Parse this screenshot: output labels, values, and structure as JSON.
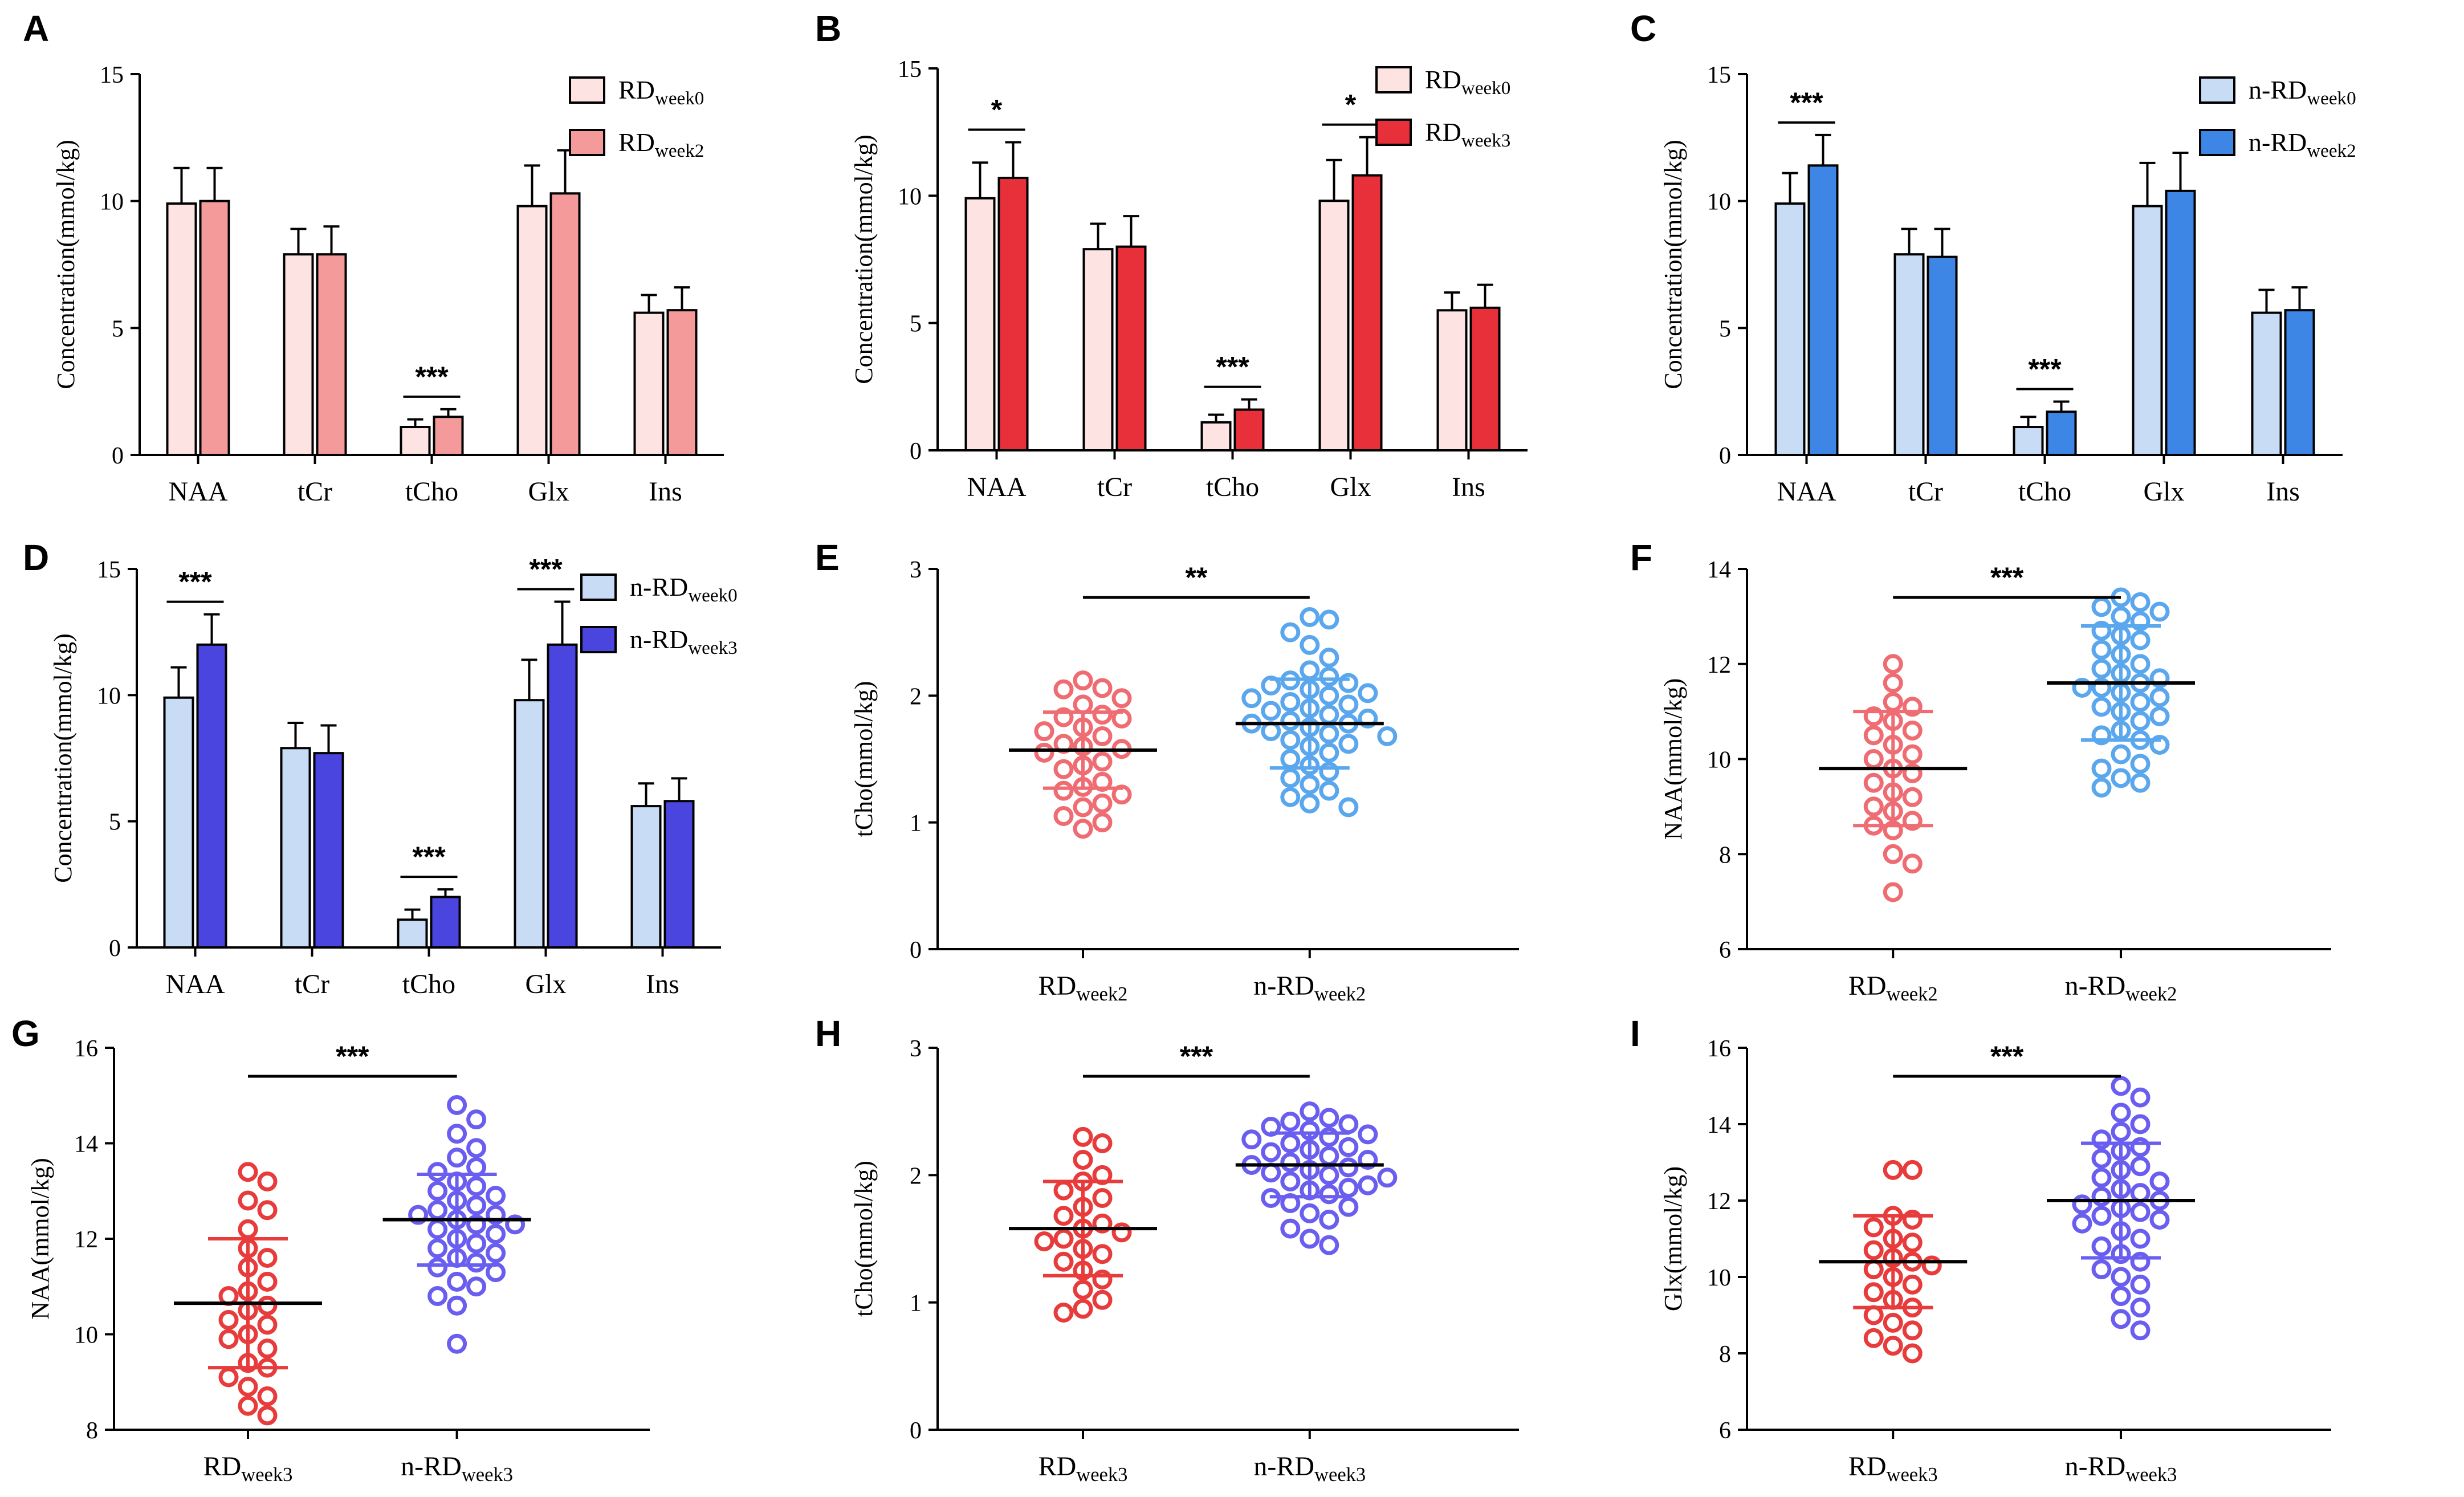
{
  "colors": {
    "RD_week0": "#fde3e1",
    "RD_week2": "#f49a9a",
    "RD_week3": "#e8303a",
    "nRD_week0": "#c8dcf5",
    "nRD_week2": "#3d86e6",
    "nRD_week3": "#4b45e0",
    "scatter_RD": "#ee6c72",
    "scatter_RD3": "#e83b3b",
    "scatter_nRD2": "#5aa7ee",
    "scatter_nRD3": "#6a5ef0"
  },
  "chart_data": [
    {
      "panel": "A",
      "type": "bar",
      "ylabel": "Concentration(mmol/kg)",
      "ylim": [
        0,
        15
      ],
      "yticks": [
        0,
        5,
        10,
        15
      ],
      "categories": [
        "NAA",
        "tCr",
        "tCho",
        "Glx",
        "Ins"
      ],
      "series": [
        {
          "name": "RD",
          "sub": "week0",
          "color_key": "RD_week0",
          "values": [
            9.9,
            7.9,
            1.1,
            9.8,
            5.6
          ],
          "errors": [
            1.4,
            1.0,
            0.3,
            1.6,
            0.7
          ]
        },
        {
          "name": "RD",
          "sub": "week2",
          "color_key": "RD_week2",
          "values": [
            10.0,
            7.9,
            1.5,
            10.3,
            5.7
          ],
          "errors": [
            1.3,
            1.1,
            0.3,
            1.7,
            0.9
          ]
        }
      ],
      "significance": [
        {
          "category": "tCho",
          "label": "***"
        }
      ]
    },
    {
      "panel": "B",
      "type": "bar",
      "ylabel": "Concentration(mmol/kg)",
      "ylim": [
        0,
        15
      ],
      "yticks": [
        0,
        5,
        10,
        15
      ],
      "categories": [
        "NAA",
        "tCr",
        "tCho",
        "Glx",
        "Ins"
      ],
      "series": [
        {
          "name": "RD",
          "sub": "week0",
          "color_key": "RD_week0",
          "values": [
            9.9,
            7.9,
            1.1,
            9.8,
            5.5
          ],
          "errors": [
            1.4,
            1.0,
            0.3,
            1.6,
            0.7
          ]
        },
        {
          "name": "RD",
          "sub": "week3",
          "color_key": "RD_week3",
          "values": [
            10.7,
            8.0,
            1.6,
            10.8,
            5.6
          ],
          "errors": [
            1.4,
            1.2,
            0.4,
            1.5,
            0.9
          ]
        }
      ],
      "significance": [
        {
          "category": "NAA",
          "label": "*"
        },
        {
          "category": "tCho",
          "label": "***"
        },
        {
          "category": "Glx",
          "label": "*"
        }
      ]
    },
    {
      "panel": "C",
      "type": "bar",
      "ylabel": "Concentration(mmol/kg)",
      "ylim": [
        0,
        15
      ],
      "yticks": [
        0,
        5,
        10,
        15
      ],
      "categories": [
        "NAA",
        "tCr",
        "tCho",
        "Glx",
        "Ins"
      ],
      "series": [
        {
          "name": "n-RD",
          "sub": "week0",
          "color_key": "nRD_week0",
          "values": [
            9.9,
            7.9,
            1.1,
            9.8,
            5.6
          ],
          "errors": [
            1.2,
            1.0,
            0.4,
            1.7,
            0.9
          ]
        },
        {
          "name": "n-RD",
          "sub": "week2",
          "color_key": "nRD_week2",
          "values": [
            11.4,
            7.8,
            1.7,
            10.4,
            5.7
          ],
          "errors": [
            1.2,
            1.1,
            0.4,
            1.5,
            0.9
          ]
        }
      ],
      "significance": [
        {
          "category": "NAA",
          "label": "***"
        },
        {
          "category": "tCho",
          "label": "***"
        }
      ]
    },
    {
      "panel": "D",
      "type": "bar",
      "ylabel": "Concentration(mmol/kg)",
      "ylim": [
        0,
        15
      ],
      "yticks": [
        0,
        5,
        10,
        15
      ],
      "categories": [
        "NAA",
        "tCr",
        "tCho",
        "Glx",
        "Ins"
      ],
      "series": [
        {
          "name": "n-RD",
          "sub": "week0",
          "color_key": "nRD_week0",
          "values": [
            9.9,
            7.9,
            1.1,
            9.8,
            5.6
          ],
          "errors": [
            1.2,
            1.0,
            0.4,
            1.6,
            0.9
          ]
        },
        {
          "name": "n-RD",
          "sub": "week3",
          "color_key": "nRD_week3",
          "values": [
            12.0,
            7.7,
            2.0,
            12.0,
            5.8
          ],
          "errors": [
            1.2,
            1.1,
            0.3,
            1.7,
            0.9
          ]
        }
      ],
      "significance": [
        {
          "category": "NAA",
          "label": "***"
        },
        {
          "category": "tCho",
          "label": "***"
        },
        {
          "category": "Glx",
          "label": "***"
        }
      ]
    },
    {
      "panel": "E",
      "type": "scatter",
      "ylabel": "tCho(mmol/kg)",
      "ylim": [
        0,
        3
      ],
      "yticks": [
        0,
        1,
        2,
        3
      ],
      "significance": "**",
      "groups": [
        {
          "name": "RD",
          "sub": "week2",
          "color_key": "scatter_RD",
          "mean": 1.57,
          "sd": 0.3,
          "points": [
            2.12,
            2.06,
            2.05,
            1.98,
            1.93,
            1.85,
            1.83,
            1.82,
            1.75,
            1.72,
            1.68,
            1.62,
            1.6,
            1.58,
            1.55,
            1.48,
            1.45,
            1.42,
            1.32,
            1.28,
            1.25,
            1.22,
            1.15,
            1.12,
            1.05,
            1.0,
            0.95
          ]
        },
        {
          "name": "n-RD",
          "sub": "week2",
          "color_key": "scatter_nRD2",
          "mean": 1.78,
          "sd": 0.35,
          "points": [
            2.62,
            2.6,
            2.5,
            2.4,
            2.3,
            2.2,
            2.15,
            2.12,
            2.1,
            2.08,
            2.05,
            2.02,
            2.0,
            1.98,
            1.95,
            1.93,
            1.9,
            1.88,
            1.85,
            1.82,
            1.8,
            1.78,
            1.78,
            1.75,
            1.72,
            1.7,
            1.68,
            1.65,
            1.62,
            1.6,
            1.55,
            1.5,
            1.45,
            1.4,
            1.35,
            1.3,
            1.25,
            1.2,
            1.15,
            1.12
          ]
        }
      ]
    },
    {
      "panel": "F",
      "type": "scatter",
      "ylabel": "NAA(mmol/kg)",
      "ylim": [
        6,
        14
      ],
      "yticks": [
        6,
        8,
        10,
        12,
        14
      ],
      "significance": "***",
      "groups": [
        {
          "name": "RD",
          "sub": "week2",
          "color_key": "scatter_RD",
          "mean": 9.8,
          "sd": 1.2,
          "points": [
            12.0,
            11.6,
            11.2,
            11.1,
            10.9,
            10.8,
            10.6,
            10.5,
            10.3,
            10.1,
            10.0,
            9.8,
            9.7,
            9.5,
            9.3,
            9.2,
            9.0,
            8.9,
            8.7,
            8.6,
            8.5,
            8.0,
            7.8,
            7.2
          ]
        },
        {
          "name": "n-RD",
          "sub": "week2",
          "color_key": "scatter_nRD2",
          "mean": 11.6,
          "sd": 1.2,
          "points": [
            13.4,
            13.3,
            13.2,
            13.1,
            13.0,
            12.9,
            12.7,
            12.6,
            12.5,
            12.3,
            12.2,
            12.0,
            11.9,
            11.8,
            11.7,
            11.6,
            11.5,
            11.5,
            11.4,
            11.3,
            11.2,
            11.1,
            11.0,
            10.9,
            10.8,
            10.6,
            10.5,
            10.4,
            10.3,
            10.1,
            9.9,
            9.8,
            9.6,
            9.5,
            9.4
          ]
        }
      ]
    },
    {
      "panel": "G",
      "type": "scatter",
      "ylabel": "NAA(mmol/kg)",
      "ylim": [
        8,
        16
      ],
      "yticks": [
        8,
        10,
        12,
        14,
        16
      ],
      "significance": "***",
      "groups": [
        {
          "name": "RD",
          "sub": "week3",
          "color_key": "scatter_RD3",
          "mean": 10.65,
          "sd": 1.35,
          "points": [
            13.4,
            13.2,
            12.8,
            12.6,
            12.2,
            11.8,
            11.6,
            11.4,
            11.1,
            10.9,
            10.8,
            10.6,
            10.5,
            10.3,
            10.2,
            10.0,
            9.9,
            9.7,
            9.4,
            9.3,
            9.1,
            8.9,
            8.7,
            8.5,
            8.3
          ]
        },
        {
          "name": "n-RD",
          "sub": "week3",
          "color_key": "scatter_nRD3",
          "mean": 12.4,
          "sd": 0.95,
          "points": [
            14.8,
            14.5,
            14.2,
            13.9,
            13.7,
            13.5,
            13.4,
            13.2,
            13.1,
            13.0,
            12.9,
            12.8,
            12.7,
            12.6,
            12.5,
            12.5,
            12.4,
            12.3,
            12.3,
            12.2,
            12.1,
            12.0,
            11.9,
            11.8,
            11.7,
            11.6,
            11.5,
            11.4,
            11.3,
            11.1,
            11.0,
            10.8,
            10.6,
            9.8
          ]
        }
      ]
    },
    {
      "panel": "H",
      "type": "scatter",
      "ylabel": "tCho(mmol/kg)",
      "ylim": [
        0,
        3
      ],
      "yticks": [
        0,
        1,
        2,
        3
      ],
      "significance": "***",
      "groups": [
        {
          "name": "RD",
          "sub": "week3",
          "color_key": "scatter_RD3",
          "mean": 1.58,
          "sd": 0.37,
          "points": [
            2.3,
            2.25,
            2.12,
            2.0,
            1.95,
            1.88,
            1.82,
            1.75,
            1.68,
            1.62,
            1.58,
            1.55,
            1.5,
            1.48,
            1.42,
            1.38,
            1.32,
            1.25,
            1.18,
            1.1,
            1.02,
            0.95,
            0.92
          ]
        },
        {
          "name": "n-RD",
          "sub": "week3",
          "color_key": "scatter_nRD3",
          "mean": 2.08,
          "sd": 0.25,
          "points": [
            2.5,
            2.45,
            2.42,
            2.4,
            2.38,
            2.35,
            2.32,
            2.3,
            2.28,
            2.25,
            2.22,
            2.2,
            2.18,
            2.15,
            2.12,
            2.1,
            2.08,
            2.06,
            2.04,
            2.02,
            2.0,
            1.98,
            1.95,
            1.92,
            1.9,
            1.88,
            1.85,
            1.82,
            1.78,
            1.75,
            1.7,
            1.65,
            1.58,
            1.5,
            1.45
          ]
        }
      ]
    },
    {
      "panel": "I",
      "type": "scatter",
      "ylabel": "Glx(mmol/kg)",
      "ylim": [
        6,
        16
      ],
      "yticks": [
        6,
        8,
        10,
        12,
        14,
        16
      ],
      "significance": "***",
      "groups": [
        {
          "name": "RD",
          "sub": "week3",
          "color_key": "scatter_RD3",
          "mean": 10.4,
          "sd": 1.2,
          "points": [
            12.8,
            12.8,
            11.6,
            11.5,
            11.3,
            11.0,
            10.9,
            10.7,
            10.5,
            10.4,
            10.3,
            10.2,
            10.0,
            9.8,
            9.6,
            9.4,
            9.2,
            9.0,
            8.8,
            8.6,
            8.4,
            8.2,
            8.0
          ]
        },
        {
          "name": "n-RD",
          "sub": "week3",
          "color_key": "scatter_nRD3",
          "mean": 12.0,
          "sd": 1.5,
          "points": [
            15.0,
            14.7,
            14.3,
            14.0,
            13.8,
            13.6,
            13.4,
            13.3,
            13.1,
            12.9,
            12.8,
            12.6,
            12.5,
            12.3,
            12.2,
            12.1,
            12.0,
            11.9,
            11.8,
            11.7,
            11.6,
            11.5,
            11.4,
            11.2,
            11.0,
            10.8,
            10.6,
            10.4,
            10.2,
            10.0,
            9.8,
            9.5,
            9.2,
            8.9,
            8.6
          ]
        }
      ]
    }
  ]
}
